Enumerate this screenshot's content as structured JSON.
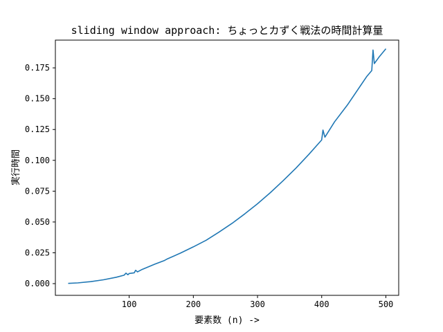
{
  "chart_data": {
    "type": "line",
    "title": "sliding window approach: ちょっとカずく戦法の時間計算量",
    "xlabel": "要素数 (n) ->",
    "ylabel": "実行時間",
    "xlim": [
      -15,
      520
    ],
    "ylim": [
      -0.0095,
      0.1975
    ],
    "x_ticks": [
      100,
      200,
      300,
      400,
      500
    ],
    "x_tick_labels": [
      "100",
      "200",
      "300",
      "400",
      "500"
    ],
    "y_ticks": [
      0.0,
      0.025,
      0.05,
      0.075,
      0.1,
      0.125,
      0.15,
      0.175
    ],
    "y_tick_labels": [
      "0.000",
      "0.025",
      "0.050",
      "0.075",
      "0.100",
      "0.125",
      "0.150",
      "0.175"
    ],
    "grid": false,
    "series": [
      {
        "color": "#1f77b4",
        "x": [
          5,
          20,
          40,
          60,
          80,
          92,
          95,
          98,
          100,
          108,
          110,
          113,
          120,
          140,
          155,
          160,
          180,
          200,
          220,
          240,
          260,
          280,
          300,
          320,
          340,
          360,
          380,
          400,
          402,
          405,
          420,
          440,
          460,
          470,
          478,
          480,
          482,
          490,
          500
        ],
        "y": [
          0.0002,
          0.0006,
          0.0016,
          0.0031,
          0.0052,
          0.0068,
          0.0085,
          0.0072,
          0.0082,
          0.0088,
          0.0108,
          0.0095,
          0.0115,
          0.0158,
          0.0188,
          0.0202,
          0.0248,
          0.0298,
          0.0352,
          0.0418,
          0.0488,
          0.0565,
          0.0648,
          0.0738,
          0.0835,
          0.0938,
          0.1048,
          0.1165,
          0.1245,
          0.1188,
          0.1312,
          0.1448,
          0.1602,
          0.1678,
          0.1728,
          0.1895,
          0.1785,
          0.1842,
          0.1905
        ]
      }
    ]
  }
}
